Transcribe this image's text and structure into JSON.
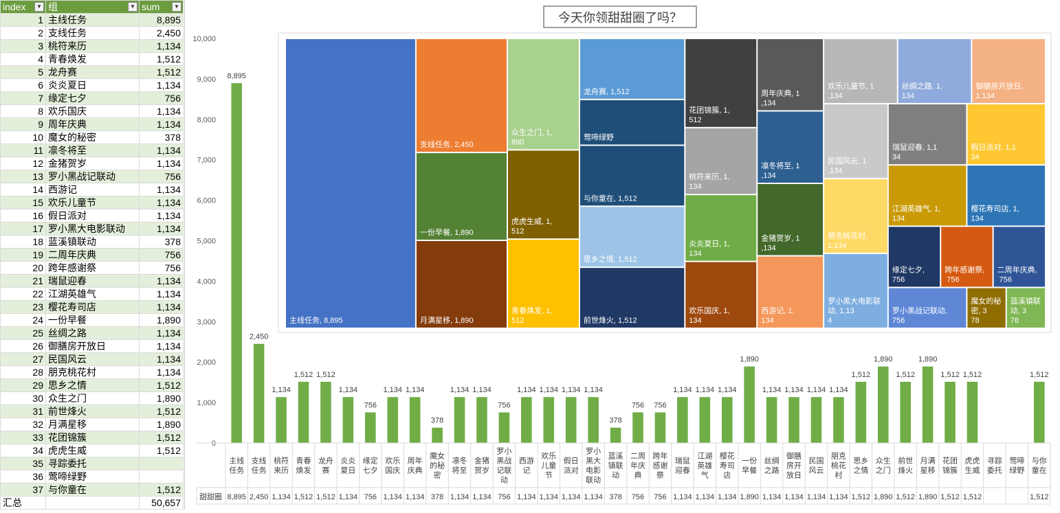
{
  "table": {
    "headers": {
      "index": "index",
      "group": "组",
      "sum": "sum"
    },
    "rows": [
      {
        "index": "1",
        "name": "主线任务",
        "sum": "8,895"
      },
      {
        "index": "2",
        "name": "支线任务",
        "sum": "2,450"
      },
      {
        "index": "3",
        "name": "桃符来历",
        "sum": "1,134"
      },
      {
        "index": "4",
        "name": "青春焕发",
        "sum": "1,512"
      },
      {
        "index": "5",
        "name": "龙舟赛",
        "sum": "1,512"
      },
      {
        "index": "6",
        "name": "炎炎夏日",
        "sum": "1,134"
      },
      {
        "index": "7",
        "name": "缘定七夕",
        "sum": "756"
      },
      {
        "index": "8",
        "name": "欢乐国庆",
        "sum": "1,134"
      },
      {
        "index": "9",
        "name": "周年庆典",
        "sum": "1,134"
      },
      {
        "index": "10",
        "name": "魔女的秘密",
        "sum": "378"
      },
      {
        "index": "11",
        "name": "凛冬将至",
        "sum": "1,134"
      },
      {
        "index": "12",
        "name": "金猪贺岁",
        "sum": "1,134"
      },
      {
        "index": "13",
        "name": "罗小黑战记联动",
        "sum": "756"
      },
      {
        "index": "14",
        "name": "西游记",
        "sum": "1,134"
      },
      {
        "index": "15",
        "name": "欢乐儿童节",
        "sum": "1,134"
      },
      {
        "index": "16",
        "name": "假日派对",
        "sum": "1,134"
      },
      {
        "index": "17",
        "name": "罗小黑大电影联动",
        "sum": "1,134"
      },
      {
        "index": "18",
        "name": "蓝溪镇联动",
        "sum": "378"
      },
      {
        "index": "19",
        "name": "二周年庆典",
        "sum": "756"
      },
      {
        "index": "20",
        "name": "跨年感谢祭",
        "sum": "756"
      },
      {
        "index": "21",
        "name": "瑞鼠迎春",
        "sum": "1,134"
      },
      {
        "index": "22",
        "name": "江湖英雄气",
        "sum": "1,134"
      },
      {
        "index": "23",
        "name": "樱花寿司店",
        "sum": "1,134"
      },
      {
        "index": "24",
        "name": "一份早餐",
        "sum": "1,890"
      },
      {
        "index": "25",
        "name": "丝绸之路",
        "sum": "1,134"
      },
      {
        "index": "26",
        "name": "御膳房开放日",
        "sum": "1,134"
      },
      {
        "index": "27",
        "name": "民国风云",
        "sum": "1,134"
      },
      {
        "index": "28",
        "name": "朋克桃花村",
        "sum": "1,134"
      },
      {
        "index": "29",
        "name": "思乡之情",
        "sum": "1,512"
      },
      {
        "index": "30",
        "name": "众生之门",
        "sum": "1,890"
      },
      {
        "index": "31",
        "name": "前世烽火",
        "sum": "1,512"
      },
      {
        "index": "32",
        "name": "月满星移",
        "sum": "1,890"
      },
      {
        "index": "33",
        "name": "花团锦簇",
        "sum": "1,512"
      },
      {
        "index": "34",
        "name": "虎虎生威",
        "sum": "1,512"
      },
      {
        "index": "35",
        "name": "寻踪委托",
        "sum": ""
      },
      {
        "index": "36",
        "name": "莺啼绿野",
        "sum": ""
      },
      {
        "index": "37",
        "name": "与你童在",
        "sum": "1,512"
      }
    ],
    "total_label": "汇总",
    "total_value": "50,657"
  },
  "chart_data": [
    {
      "type": "bar",
      "title": "今天你领甜甜圈了吗？",
      "series_name": "甜甜圈",
      "ylim": [
        0,
        10000
      ],
      "yticks": [
        0,
        1000,
        2000,
        3000,
        4000,
        5000,
        6000,
        7000,
        8000,
        9000,
        10000
      ],
      "ytick_labels": [
        "0",
        "1,000",
        "2,000",
        "3,000",
        "4,000",
        "5,000",
        "6,000",
        "7,000",
        "8,000",
        "9,000",
        "10,000"
      ],
      "categories": [
        "主线任务",
        "支线任务",
        "桃符来历",
        "青春焕发",
        "龙舟赛",
        "炎炎夏日",
        "缘定七夕",
        "欢乐国庆",
        "周年庆典",
        "魔女的秘密",
        "凛冬将至",
        "金猪贺岁",
        "罗小黑战记联动",
        "西游记",
        "欢乐儿童节",
        "假日派对",
        "罗小黑大电影联动",
        "蓝溪镇联动",
        "二周年庆典",
        "跨年感谢祭",
        "瑞鼠迎春",
        "江湖英雄气",
        "樱花寿司店",
        "一份早餐",
        "丝绸之路",
        "御膳房开放日",
        "民国风云",
        "朋克桃花村",
        "思乡之情",
        "众生之门",
        "前世烽火",
        "月满星移",
        "花团锦簇",
        "虎虎生威",
        "寻踪委托",
        "莺啼绿野",
        "与你童在"
      ],
      "values": [
        8895,
        2450,
        1134,
        1512,
        1512,
        1134,
        756,
        1134,
        1134,
        378,
        1134,
        1134,
        756,
        1134,
        1134,
        1134,
        1134,
        378,
        756,
        756,
        1134,
        1134,
        1134,
        1890,
        1134,
        1134,
        1134,
        1134,
        1512,
        1890,
        1512,
        1890,
        1512,
        1512,
        null,
        null,
        1512
      ],
      "value_labels": [
        "8,895",
        "2,450",
        "1,134",
        "1,512",
        "1,512",
        "1,134",
        "756",
        "1,134",
        "1,134",
        "378",
        "1,134",
        "1,134",
        "756",
        "1,134",
        "1,134",
        "1,134",
        "1,134",
        "378",
        "756",
        "756",
        "1,134",
        "1,134",
        "1,134",
        "1,890",
        "1,134",
        "1,134",
        "1,134",
        "1,134",
        "1,512",
        "1,890",
        "1,512",
        "1,890",
        "1,512",
        "1,512",
        "",
        "",
        "1,512"
      ],
      "grid": false,
      "data_table": true,
      "bar_color": "#70ad47"
    },
    {
      "type": "treemap",
      "items": [
        {
          "name": "主线任务",
          "value": 8895,
          "label": "主线任务, 8,895",
          "color": "#4472c4"
        },
        {
          "name": "支线任务",
          "value": 2450,
          "label": "支线任务, 2,450",
          "color": "#ed7d31"
        },
        {
          "name": "一份早餐",
          "value": 1890,
          "label": "一份早餐, 1,890",
          "color": "#548235"
        },
        {
          "name": "月满星移",
          "value": 1890,
          "label": "月满星移, 1,890",
          "color": "#843c0c"
        },
        {
          "name": "众生之门",
          "value": 1890,
          "label": "众生之门, 1,890",
          "color": "#a9d18e"
        },
        {
          "name": "虎虎生威",
          "value": 1512,
          "label": "虎虎生威, 1,512",
          "color": "#7f6000"
        },
        {
          "name": "青春焕发",
          "value": 1512,
          "label": "青春焕发, 1,512",
          "color": "#ffc000"
        },
        {
          "name": "龙舟赛",
          "value": 1512,
          "label": "龙舟赛, 1,512",
          "color": "#5b9bd5"
        },
        {
          "name": "莺啼绿野",
          "value": null,
          "label": "莺啼绿野",
          "color": "#1f4e79"
        },
        {
          "name": "与你童在",
          "value": 1512,
          "label": "与你童在, 1,512",
          "color": "#1f4e79"
        },
        {
          "name": "思乡之情",
          "value": 1512,
          "label": "思乡之情, 1,512",
          "color": "#9dc3e6"
        },
        {
          "name": "前世烽火",
          "value": 1512,
          "label": "前世烽火, 1,512",
          "color": "#203864"
        },
        {
          "name": "花团锦簇",
          "value": 1512,
          "label": "花团锦簇, 1,512",
          "color": "#404040"
        },
        {
          "name": "桃符来历",
          "value": 1134,
          "label": "桃符来历, 1,134",
          "color": "#a5a5a5"
        },
        {
          "name": "炎炎夏日",
          "value": 1134,
          "label": "炎炎夏日, 1,134",
          "color": "#70ad47"
        },
        {
          "name": "欢乐国庆",
          "value": 1134,
          "label": "欢乐国庆, 1,134",
          "color": "#9e480e"
        },
        {
          "name": "周年庆典",
          "value": 1134,
          "label": "周年庆典, 1,134",
          "color": "#595959"
        },
        {
          "name": "凛冬将至",
          "value": 1134,
          "label": "凛冬将至, 1,134",
          "color": "#2e5f91"
        },
        {
          "name": "金猪贺岁",
          "value": 1134,
          "label": "金猪贺岁, 1,134",
          "color": "#43682b"
        },
        {
          "name": "西游记",
          "value": 1134,
          "label": "西游记, 1,134",
          "color": "#f4975a"
        },
        {
          "name": "欢乐儿童节",
          "value": 1134,
          "label": "欢乐儿童节, 1,134",
          "color": "#b7b7b7"
        },
        {
          "name": "民国风云",
          "value": 1134,
          "label": "民国风云, 1,134",
          "color": "#c9c9c9"
        },
        {
          "name": "朋克桃花村",
          "value": 1134,
          "label": "朋克桃花村, 1,134",
          "color": "#ffd966"
        },
        {
          "name": "罗小黑大电影联动",
          "value": 1134,
          "label": "罗小黑大电影联动, 1,134",
          "color": "#7eaee0"
        },
        {
          "name": "丝绸之路",
          "value": 1134,
          "label": "丝绸之路, 1,134",
          "color": "#8faadc"
        },
        {
          "name": "瑞鼠迎春",
          "value": 1134,
          "label": "瑞鼠迎春, 1,134",
          "color": "#7f7f7f"
        },
        {
          "name": "江湖英雄气",
          "value": 1134,
          "label": "江湖英雄气, 1,134",
          "color": "#c99a06"
        },
        {
          "name": "御膳房开放日",
          "value": 1134,
          "label": "御膳房开放日, 1,134",
          "color": "#f4b183"
        },
        {
          "name": "假日派对",
          "value": 1134,
          "label": "假日派对, 1,134",
          "color": "#ffc832"
        },
        {
          "name": "樱花寿司店",
          "value": 1134,
          "label": "樱花寿司店, 1,134",
          "color": "#2e75b6"
        },
        {
          "name": "缘定七夕",
          "value": 756,
          "label": "缘定七夕, 756",
          "color": "#203864"
        },
        {
          "name": "罗小黑战记联动",
          "value": 756,
          "label": "罗小黑战记联动, 756",
          "color": "#5f87d6"
        },
        {
          "name": "跨年感谢祭",
          "value": 756,
          "label": "跨年感谢祭, 756",
          "color": "#d55a11"
        },
        {
          "name": "二周年庆典",
          "value": 756,
          "label": "二周年庆典, 756",
          "color": "#2f5597"
        },
        {
          "name": "魔女的秘密",
          "value": 378,
          "label": "魔女的秘密, 378",
          "color": "#8f6d00"
        },
        {
          "name": "蓝溪镇联动",
          "value": 378,
          "label": "蓝溪镇联动, 378",
          "color": "#7fb754"
        }
      ]
    }
  ]
}
